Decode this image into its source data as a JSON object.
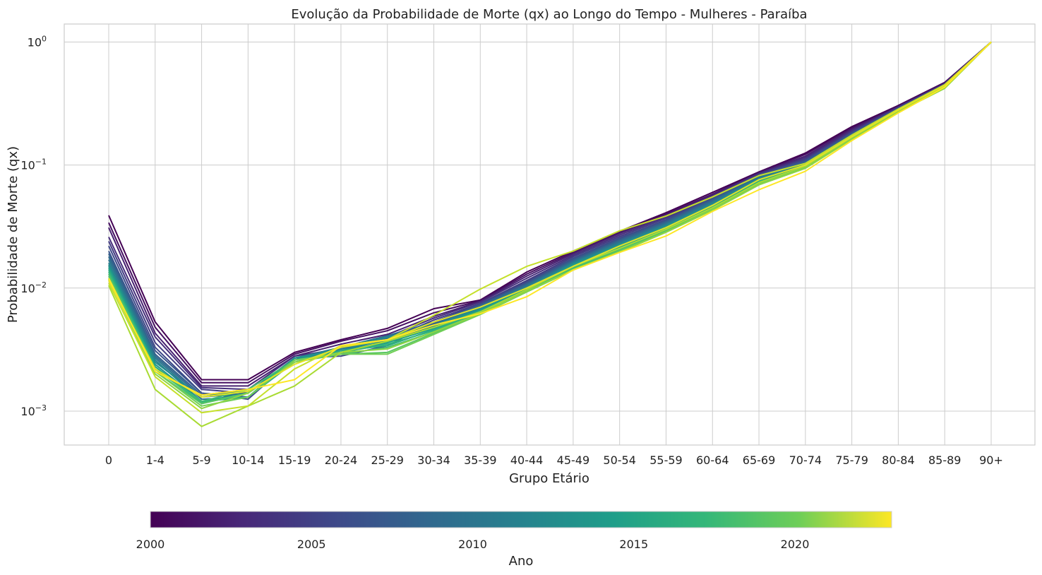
{
  "chart_data": {
    "type": "line",
    "title": "Evolução da Probabilidade de Morte (qx) ao Longo do Tempo - Mulheres - Paraíba",
    "xlabel": "Grupo Etário",
    "ylabel": "Probabilidade de Morte (qx)",
    "yscale": "log",
    "ylim": [
      0.00053,
      1.4
    ],
    "yticks": [
      {
        "value": 0.001,
        "base": "10",
        "exp": "−3"
      },
      {
        "value": 0.01,
        "base": "10",
        "exp": "−2"
      },
      {
        "value": 0.1,
        "base": "10",
        "exp": "−1"
      },
      {
        "value": 1,
        "base": "10",
        "exp": "0"
      }
    ],
    "grid": true,
    "categories": [
      "0",
      "1-4",
      "5-9",
      "10-14",
      "15-19",
      "20-24",
      "25-29",
      "30-34",
      "35-39",
      "40-44",
      "45-49",
      "50-54",
      "55-59",
      "60-64",
      "65-69",
      "70-74",
      "75-79",
      "80-84",
      "85-89",
      "90+"
    ],
    "colorbar": {
      "label": "Ano",
      "min": 2000,
      "max": 2023,
      "ticks": [
        "2000",
        "2005",
        "2010",
        "2015",
        "2020"
      ],
      "colormap": "viridis"
    },
    "series": [
      {
        "year": 2000,
        "values": [
          0.039,
          0.0053,
          0.0018,
          0.0018,
          0.003,
          0.0038,
          0.0047,
          0.0068,
          0.008,
          0.0135,
          0.02,
          0.029,
          0.041,
          0.06,
          0.088,
          0.125,
          0.205,
          0.305,
          0.47,
          1.0
        ]
      },
      {
        "year": 2001,
        "values": [
          0.034,
          0.0048,
          0.0017,
          0.0017,
          0.0029,
          0.0037,
          0.0045,
          0.0063,
          0.0079,
          0.013,
          0.0195,
          0.0285,
          0.04,
          0.058,
          0.087,
          0.122,
          0.2,
          0.3,
          0.465,
          1.0
        ]
      },
      {
        "year": 2002,
        "values": [
          0.031,
          0.0043,
          0.0016,
          0.0016,
          0.0028,
          0.0035,
          0.0042,
          0.0059,
          0.0078,
          0.0125,
          0.019,
          0.0278,
          0.039,
          0.057,
          0.086,
          0.118,
          0.195,
          0.298,
          0.46,
          1.0
        ]
      },
      {
        "year": 2003,
        "values": [
          0.026,
          0.004,
          0.00155,
          0.0015,
          0.0028,
          0.0032,
          0.004,
          0.0057,
          0.0077,
          0.012,
          0.0185,
          0.027,
          0.038,
          0.056,
          0.085,
          0.115,
          0.19,
          0.295,
          0.458,
          1.0
        ]
      },
      {
        "year": 2004,
        "values": [
          0.024,
          0.0036,
          0.0015,
          0.0014,
          0.0027,
          0.0029,
          0.0038,
          0.0055,
          0.0075,
          0.0115,
          0.018,
          0.0262,
          0.037,
          0.055,
          0.084,
          0.112,
          0.186,
          0.292,
          0.455,
          1.0
        ]
      },
      {
        "year": 2005,
        "values": [
          0.022,
          0.0033,
          0.0014,
          0.00125,
          0.0027,
          0.0028,
          0.0034,
          0.0053,
          0.0074,
          0.0112,
          0.0175,
          0.0255,
          0.036,
          0.054,
          0.083,
          0.11,
          0.183,
          0.29,
          0.452,
          1.0
        ]
      },
      {
        "year": 2006,
        "values": [
          0.02,
          0.0031,
          0.0014,
          0.0013,
          0.0027,
          0.003,
          0.0036,
          0.0052,
          0.0073,
          0.011,
          0.0172,
          0.025,
          0.0352,
          0.053,
          0.082,
          0.108,
          0.18,
          0.288,
          0.45,
          1.0
        ]
      },
      {
        "year": 2007,
        "values": [
          0.019,
          0.0029,
          0.00135,
          0.0015,
          0.0026,
          0.0032,
          0.004,
          0.0051,
          0.0072,
          0.0108,
          0.0168,
          0.0245,
          0.0345,
          0.052,
          0.081,
          0.106,
          0.178,
          0.286,
          0.448,
          1.0
        ]
      },
      {
        "year": 2008,
        "values": [
          0.018,
          0.0028,
          0.0013,
          0.0014,
          0.0027,
          0.0033,
          0.0041,
          0.0053,
          0.0071,
          0.0106,
          0.0165,
          0.024,
          0.0338,
          0.051,
          0.08,
          0.104,
          0.176,
          0.284,
          0.446,
          1.0
        ]
      },
      {
        "year": 2009,
        "values": [
          0.017,
          0.0027,
          0.00125,
          0.0013,
          0.0026,
          0.0031,
          0.0039,
          0.005,
          0.007,
          0.0104,
          0.0162,
          0.0235,
          0.0332,
          0.05,
          0.079,
          0.103,
          0.174,
          0.282,
          0.444,
          1.0
        ]
      },
      {
        "year": 2010,
        "values": [
          0.016,
          0.0026,
          0.0012,
          0.0014,
          0.0027,
          0.0032,
          0.0038,
          0.0049,
          0.0069,
          0.0102,
          0.016,
          0.023,
          0.0326,
          0.049,
          0.078,
          0.102,
          0.172,
          0.28,
          0.442,
          1.0
        ]
      },
      {
        "year": 2011,
        "values": [
          0.0155,
          0.0025,
          0.0013,
          0.0015,
          0.0026,
          0.0033,
          0.004,
          0.005,
          0.0068,
          0.01,
          0.0157,
          0.0226,
          0.032,
          0.048,
          0.077,
          0.101,
          0.17,
          0.279,
          0.44,
          1.0
        ]
      },
      {
        "year": 2012,
        "values": [
          0.015,
          0.0024,
          0.0012,
          0.0013,
          0.0027,
          0.0031,
          0.0037,
          0.0048,
          0.0067,
          0.0099,
          0.0155,
          0.0222,
          0.0314,
          0.047,
          0.076,
          0.1,
          0.169,
          0.278,
          0.439,
          1.0
        ]
      },
      {
        "year": 2013,
        "values": [
          0.0145,
          0.0023,
          0.00115,
          0.0014,
          0.0026,
          0.003,
          0.0036,
          0.0047,
          0.0066,
          0.0098,
          0.0152,
          0.0218,
          0.0308,
          0.046,
          0.075,
          0.099,
          0.168,
          0.277,
          0.438,
          1.0
        ]
      },
      {
        "year": 2014,
        "values": [
          0.014,
          0.0023,
          0.0012,
          0.0013,
          0.0025,
          0.0031,
          0.0034,
          0.0046,
          0.0065,
          0.0097,
          0.015,
          0.0214,
          0.0302,
          0.046,
          0.074,
          0.098,
          0.167,
          0.276,
          0.437,
          1.0
        ]
      },
      {
        "year": 2015,
        "values": [
          0.0135,
          0.0022,
          0.00118,
          0.0014,
          0.0026,
          0.003,
          0.0035,
          0.0045,
          0.0064,
          0.0096,
          0.0148,
          0.021,
          0.0298,
          0.045,
          0.073,
          0.097,
          0.166,
          0.275,
          0.436,
          1.0
        ]
      },
      {
        "year": 2016,
        "values": [
          0.013,
          0.0022,
          0.0012,
          0.0015,
          0.0026,
          0.0029,
          0.0033,
          0.0044,
          0.0063,
          0.0095,
          0.0145,
          0.0206,
          0.0294,
          0.045,
          0.072,
          0.096,
          0.165,
          0.274,
          0.435,
          1.0
        ]
      },
      {
        "year": 2017,
        "values": [
          0.0125,
          0.0021,
          0.00115,
          0.0014,
          0.0025,
          0.0029,
          0.003,
          0.0043,
          0.0062,
          0.0094,
          0.0142,
          0.0202,
          0.029,
          0.044,
          0.071,
          0.095,
          0.164,
          0.273,
          0.434,
          1.0
        ]
      },
      {
        "year": 2018,
        "values": [
          0.012,
          0.0021,
          0.0011,
          0.0013,
          0.0026,
          0.0029,
          0.0029,
          0.0042,
          0.0061,
          0.0093,
          0.014,
          0.0198,
          0.0286,
          0.044,
          0.07,
          0.095,
          0.163,
          0.272,
          0.433,
          1.0
        ]
      },
      {
        "year": 2019,
        "values": [
          0.0118,
          0.002,
          0.00105,
          0.0014,
          0.0025,
          0.003,
          0.0032,
          0.0044,
          0.0062,
          0.0094,
          0.0141,
          0.0196,
          0.0284,
          0.043,
          0.069,
          0.094,
          0.162,
          0.27,
          0.42,
          1.0
        ]
      },
      {
        "year": 2020,
        "values": [
          0.0105,
          0.0015,
          0.00075,
          0.0011,
          0.0016,
          0.003,
          0.0037,
          0.0048,
          0.0064,
          0.0097,
          0.015,
          0.021,
          0.03,
          0.045,
          0.072,
          0.098,
          0.168,
          0.276,
          0.43,
          1.0
        ]
      },
      {
        "year": 2021,
        "values": [
          0.011,
          0.0019,
          0.00097,
          0.0011,
          0.0022,
          0.0034,
          0.0038,
          0.006,
          0.0098,
          0.015,
          0.02,
          0.0292,
          0.0385,
          0.055,
          0.082,
          0.103,
          0.175,
          0.285,
          0.45,
          1.0
        ]
      },
      {
        "year": 2022,
        "values": [
          0.0115,
          0.0022,
          0.0013,
          0.00145,
          0.0024,
          0.0033,
          0.0038,
          0.0053,
          0.007,
          0.01,
          0.015,
          0.022,
          0.031,
          0.047,
          0.076,
          0.1,
          0.17,
          0.28,
          0.445,
          1.0
        ]
      },
      {
        "year": 2023,
        "values": [
          0.012,
          0.0021,
          0.00135,
          0.0015,
          0.0018,
          0.0034,
          0.0038,
          0.005,
          0.0062,
          0.0085,
          0.014,
          0.0195,
          0.0265,
          0.042,
          0.063,
          0.089,
          0.158,
          0.265,
          0.43,
          1.0
        ]
      }
    ]
  }
}
